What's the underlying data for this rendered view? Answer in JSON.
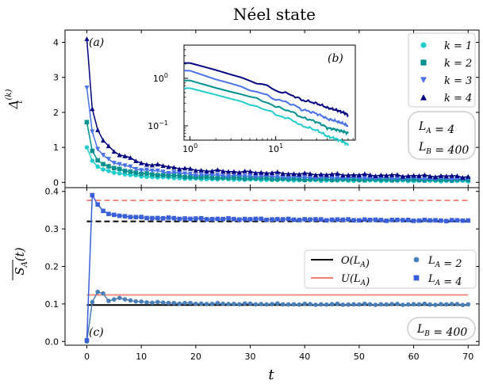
{
  "title": "Néel state",
  "chart_data": [
    {
      "type": "line",
      "panel_label": "(a)",
      "ylabel": "Δ_t^(k)",
      "xlim": [
        -4,
        72
      ],
      "ylim": [
        -0.15,
        4.35
      ],
      "yticks": [
        0,
        1,
        2,
        3,
        4
      ],
      "xticks": [
        0,
        10,
        20,
        30,
        40,
        50,
        60,
        70
      ],
      "legend_position": "top-right",
      "annotation": [
        "L_A = 4",
        "L_B = 400"
      ],
      "series": [
        {
          "name": "k = 1",
          "color": "#22cccc",
          "marker": "circle",
          "anchors": [
            [
              0,
              1.0
            ],
            [
              1,
              0.62
            ],
            [
              2,
              0.45
            ],
            [
              3,
              0.37
            ],
            [
              5,
              0.28
            ],
            [
              10,
              0.17
            ],
            [
              20,
              0.1
            ],
            [
              40,
              0.06
            ],
            [
              70,
              0.04
            ]
          ]
        },
        {
          "name": "k = 2",
          "color": "#009090",
          "marker": "square",
          "anchors": [
            [
              0,
              1.72
            ],
            [
              1,
              0.9
            ],
            [
              2,
              0.63
            ],
            [
              3,
              0.52
            ],
            [
              5,
              0.4
            ],
            [
              10,
              0.25
            ],
            [
              20,
              0.15
            ],
            [
              40,
              0.09
            ],
            [
              70,
              0.07
            ]
          ]
        },
        {
          "name": "k = 3",
          "color": "#4a72e8",
          "marker": "triangle-down",
          "anchors": [
            [
              0,
              2.7
            ],
            [
              1,
              1.45
            ],
            [
              2,
              0.95
            ],
            [
              3,
              0.78
            ],
            [
              5,
              0.55
            ],
            [
              10,
              0.36
            ],
            [
              20,
              0.22
            ],
            [
              40,
              0.14
            ],
            [
              70,
              0.1
            ]
          ]
        },
        {
          "name": "k = 4",
          "color": "#000080",
          "marker": "triangle-up",
          "anchors": [
            [
              0,
              4.1
            ],
            [
              1,
              2.1
            ],
            [
              2,
              1.5
            ],
            [
              3,
              1.2
            ],
            [
              5,
              0.88
            ],
            [
              10,
              0.55
            ],
            [
              20,
              0.35
            ],
            [
              40,
              0.24
            ],
            [
              70,
              0.17
            ]
          ]
        }
      ]
    },
    {
      "type": "line",
      "panel_label": "(b)",
      "xscale": "log",
      "yscale": "log",
      "xlim": [
        0.85,
        85
      ],
      "ylim": [
        0.05,
        5
      ],
      "xticks_labels": [
        "10^0",
        "10^1"
      ],
      "yticks_labels": [
        "10^-1",
        "10^0"
      ]
    },
    {
      "type": "line",
      "panel_label": "(c)",
      "xlabel": "t",
      "ylabel": "S_A(t)",
      "xlim": [
        -4,
        72
      ],
      "ylim": [
        -0.01,
        0.41
      ],
      "yticks": [
        0.0,
        0.1,
        0.2,
        0.3,
        0.4
      ],
      "xticks": [
        0,
        10,
        20,
        30,
        40,
        50,
        60,
        70
      ],
      "legend_position": "center-right",
      "annotation": "L_B = 400",
      "reference_lines": [
        {
          "name": "O(L_A)",
          "color": "#000000",
          "dash": "solid",
          "x_range": [
            0,
            70
          ],
          "y": 0.097
        },
        {
          "name": "U(L_A)",
          "color": "#f08070",
          "dash": "solid",
          "x_range": [
            0,
            70
          ],
          "y": 0.124
        },
        {
          "name": "",
          "color": "#000000",
          "dash": "dashed",
          "x_range": [
            0,
            70
          ],
          "y": 0.32
        },
        {
          "name": "",
          "color": "#f08070",
          "dash": "dashed",
          "x_range": [
            0,
            70
          ],
          "y": 0.376
        }
      ],
      "series": [
        {
          "name": "L_A = 2",
          "color": "#4a7fb8",
          "marker": "circle",
          "anchors": [
            [
              0,
              0.0
            ],
            [
              1,
              0.105
            ],
            [
              2,
              0.132
            ],
            [
              3,
              0.128
            ],
            [
              4,
              0.108
            ],
            [
              5,
              0.112
            ],
            [
              6,
              0.116
            ],
            [
              8,
              0.108
            ],
            [
              12,
              0.104
            ],
            [
              20,
              0.101
            ],
            [
              40,
              0.099
            ],
            [
              70,
              0.099
            ]
          ]
        },
        {
          "name": "L_A = 4",
          "color": "#3a5fd8",
          "marker": "square",
          "anchors": [
            [
              0,
              0.003
            ],
            [
              1,
              0.39
            ],
            [
              2,
              0.365
            ],
            [
              3,
              0.348
            ],
            [
              4,
              0.34
            ],
            [
              6,
              0.335
            ],
            [
              10,
              0.33
            ],
            [
              20,
              0.327
            ],
            [
              40,
              0.325
            ],
            [
              70,
              0.322
            ]
          ]
        }
      ]
    }
  ]
}
